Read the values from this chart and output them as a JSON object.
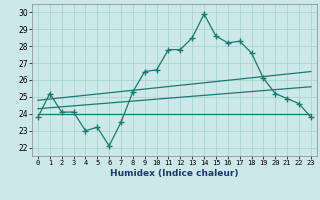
{
  "xlabel": "Humidex (Indice chaleur)",
  "bg_color": "#cce8e8",
  "grid_color": "#aad4d4",
  "line_color": "#1a7a6e",
  "xlim": [
    -0.5,
    23.5
  ],
  "ylim": [
    21.5,
    30.5
  ],
  "xticks": [
    0,
    1,
    2,
    3,
    4,
    5,
    6,
    7,
    8,
    9,
    10,
    11,
    12,
    13,
    14,
    15,
    16,
    17,
    18,
    19,
    20,
    21,
    22,
    23
  ],
  "yticks": [
    22,
    23,
    24,
    25,
    26,
    27,
    28,
    29,
    30
  ],
  "line1_x": [
    0,
    1,
    2,
    3,
    4,
    5,
    6,
    7,
    8,
    9,
    10,
    11,
    12,
    13,
    14,
    15,
    16,
    17,
    18,
    19,
    20,
    21,
    22,
    23
  ],
  "line1_y": [
    23.8,
    25.2,
    24.1,
    24.1,
    23.0,
    23.2,
    22.1,
    23.5,
    25.3,
    26.5,
    26.6,
    27.8,
    27.8,
    28.5,
    29.9,
    28.6,
    28.2,
    28.3,
    27.6,
    26.1,
    25.2,
    24.9,
    24.6,
    23.8
  ],
  "line2_x": [
    0,
    23
  ],
  "line2_y": [
    24.0,
    24.0
  ],
  "line3_x": [
    0,
    23
  ],
  "line3_y": [
    24.3,
    25.6
  ],
  "line4_x": [
    0,
    23
  ],
  "line4_y": [
    24.8,
    26.5
  ]
}
